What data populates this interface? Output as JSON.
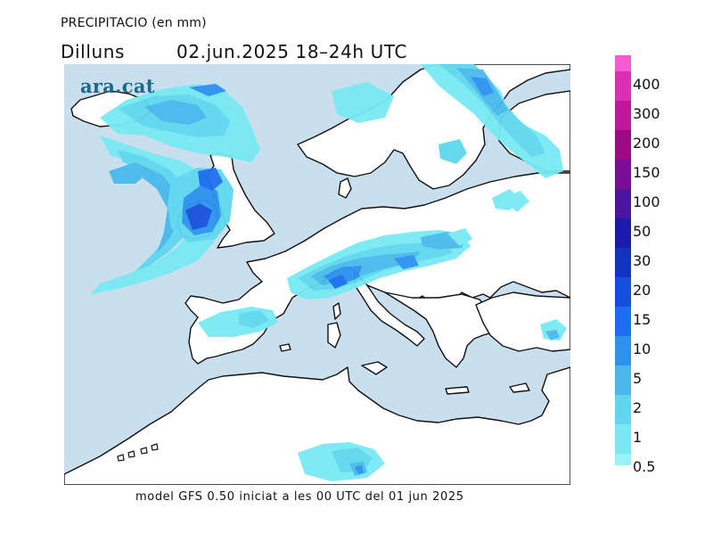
{
  "header": {
    "variable": "PRECIPITACIO (en mm)",
    "day": "Dilluns",
    "date_range": "02.jun.2025 18–24h UTC"
  },
  "logo": {
    "text": "ara.cat"
  },
  "footer": {
    "text": "model GFS 0.50 iniciat a les 00 UTC del 01 jun 2025"
  },
  "legend": {
    "colors": {
      "0.5": "#99f1f7",
      "1": "#78e9f3",
      "2": "#5fd8ef",
      "5": "#49b9ec",
      "10": "#2b92ef",
      "15": "#1c6ff0",
      "20": "#164fdc",
      "30": "#1232c2",
      "50": "#1a1aac",
      "100": "#4b14a4",
      "150": "#7a0e94",
      "200": "#9e0a84",
      "300": "#c1179b",
      "400": "#de2fb4",
      "top": "#f45ad1"
    },
    "labels": [
      "400",
      "300",
      "200",
      "150",
      "100",
      "50",
      "30",
      "20",
      "15",
      "10",
      "5",
      "2",
      "1",
      "0.5"
    ]
  },
  "map": {
    "sea_color": "#c9dfee",
    "land_color": "#ffffff",
    "coast_color": "#111111"
  }
}
